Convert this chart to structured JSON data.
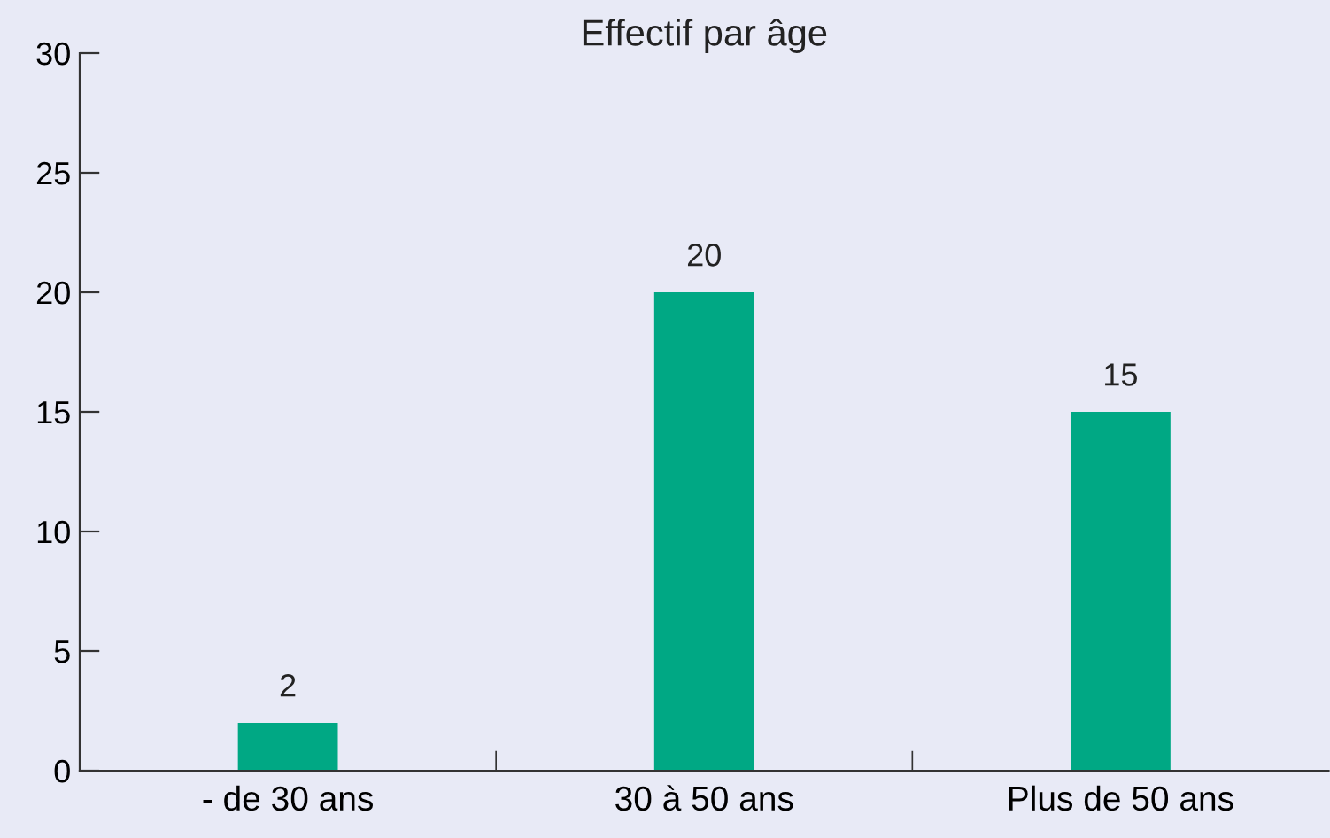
{
  "chart_data": {
    "type": "bar",
    "title": "Effectif par âge",
    "categories": [
      "- de 30 ans",
      "30 à 50 ans",
      "Plus de 50 ans"
    ],
    "values": [
      2,
      20,
      15
    ],
    "color": "#00a884",
    "ylim": [
      0,
      30
    ],
    "yticks": [
      0,
      5,
      10,
      15,
      20,
      25,
      30
    ],
    "grid": false,
    "data_labels": true
  }
}
